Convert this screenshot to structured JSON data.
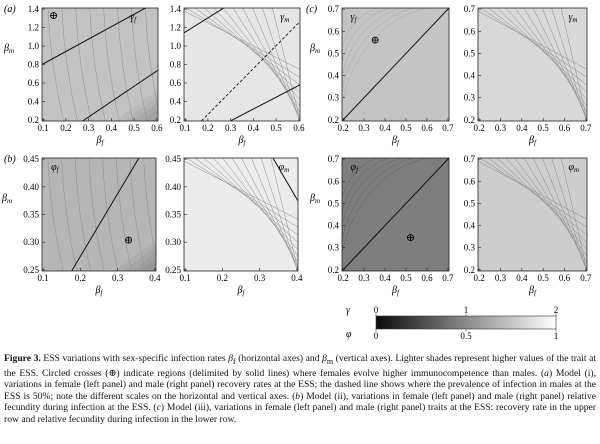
{
  "panels": [
    {
      "name": "panel-a-female-recovery",
      "group_label": "(a)",
      "trait": "γ",
      "sub": "f",
      "marker": "⊕",
      "x_label": "β",
      "x_sub": "f",
      "y_label": "β",
      "y_sub": "m",
      "x_ticks": [
        "0.1",
        "0.2",
        "0.3",
        "0.4",
        "0.5",
        "0.6"
      ],
      "y_ticks": [
        "1.4",
        "1.2",
        "1.0",
        "0.8",
        "0.6",
        "0.4",
        "0.2"
      ]
    },
    {
      "name": "panel-a-male-recovery",
      "group_label": "",
      "trait": "γ",
      "sub": "m",
      "marker": "",
      "x_label": "β",
      "x_sub": "f",
      "y_label": "",
      "y_sub": "",
      "x_ticks": [
        "0.1",
        "0.2",
        "0.3",
        "0.4",
        "0.5",
        "0.6"
      ],
      "y_ticks": [
        "1.4",
        "1.2",
        "1.0",
        "0.8",
        "0.6",
        "0.4",
        "0.2"
      ]
    },
    {
      "name": "panel-c-female-recovery",
      "group_label": "(c)",
      "trait": "γ",
      "sub": "f",
      "marker": "⊕",
      "x_label": "β",
      "x_sub": "f",
      "y_label": "β",
      "y_sub": "m",
      "x_ticks": [
        "0.2",
        "0.3",
        "0.4",
        "0.5",
        "0.6",
        "0.7"
      ],
      "y_ticks": [
        "0.7",
        "0.6",
        "0.5",
        "0.4",
        "0.3",
        "0.2"
      ]
    },
    {
      "name": "panel-c-male-recovery",
      "group_label": "",
      "trait": "γ",
      "sub": "m",
      "marker": "",
      "x_label": "β",
      "x_sub": "f",
      "y_label": "",
      "y_sub": "",
      "x_ticks": [
        "0.2",
        "0.3",
        "0.4",
        "0.5",
        "0.6",
        "0.7"
      ],
      "y_ticks": [
        "0.7",
        "0.6",
        "0.5",
        "0.4",
        "0.3",
        "0.2"
      ]
    },
    {
      "name": "panel-b-female-fecundity",
      "group_label": "(b)",
      "trait": "φ",
      "sub": "f",
      "marker": "⊕",
      "x_label": "β",
      "x_sub": "f",
      "y_label": "β",
      "y_sub": "m",
      "x_ticks": [
        "0.1",
        "0.2",
        "0.3",
        "0.4"
      ],
      "y_ticks": [
        "0.45",
        "0.40",
        "0.35",
        "0.30",
        "0.25"
      ]
    },
    {
      "name": "panel-b-male-fecundity",
      "group_label": "",
      "trait": "φ",
      "sub": "m",
      "marker": "",
      "x_label": "β",
      "x_sub": "f",
      "y_label": "",
      "y_sub": "",
      "x_ticks": [
        "0.1",
        "0.2",
        "0.3",
        "0.4"
      ],
      "y_ticks": [
        "0.45",
        "0.40",
        "0.35",
        "0.30",
        "0.25"
      ]
    },
    {
      "name": "panel-c-female-fecundity",
      "group_label": "",
      "trait": "φ",
      "sub": "f",
      "marker": "⊕",
      "x_label": "β",
      "x_sub": "f",
      "y_label": "β",
      "y_sub": "m",
      "x_ticks": [
        "0.2",
        "0.3",
        "0.4",
        "0.5",
        "0.6",
        "0.7"
      ],
      "y_ticks": [
        "0.7",
        "0.6",
        "0.5",
        "0.4",
        "0.3",
        "0.2"
      ]
    },
    {
      "name": "panel-c-male-fecundity",
      "group_label": "",
      "trait": "φ",
      "sub": "m",
      "marker": "",
      "x_label": "β",
      "x_sub": "f",
      "y_label": "",
      "y_sub": "",
      "x_ticks": [
        "0.2",
        "0.3",
        "0.4",
        "0.5",
        "0.6",
        "0.7"
      ],
      "y_ticks": [
        "0.7",
        "0.6",
        "0.5",
        "0.4",
        "0.3",
        "0.2"
      ]
    }
  ],
  "colorbar": {
    "top_symbol": "γ",
    "bottom_symbol": "φ",
    "top_ticks": [
      "0",
      "1",
      "2"
    ],
    "bottom_ticks": [
      "0",
      "0.5",
      "1"
    ],
    "dark_color": "#0a0a0a",
    "light_color": "#ffffff"
  },
  "caption": {
    "label": "Figure 3.",
    "p1": "ESS variations with sex-specific infection rates ",
    "p2": " (horizontal axes) and ",
    "p3": " (vertical axes). Lighter shades represent higher values of the trait at the ESS. Circled crosses (⊕) indicate regions (delimited by solid lines) where females evolve higher immunocompetence than males. (",
    "a_label": "a",
    "p4": ") Model (i), variations in female (left panel) and male (right panel) recovery rates at the ESS; the dashed line shows where the prevalence of infection in males at the ESS is 50%; note the different scales on the horizontal and vertical axes. (",
    "b_label": "b",
    "p5": ") Model (ii), variations in female (left panel) and male (right panel) relative fecundity during infection at the ESS. (",
    "c_label": "c",
    "p6": ") Model (iii), variations in female (left panel) and male (right panel) traits at the ESS: recovery rate in the upper row and relative fecundity during infection in the lower row.",
    "beta": "β",
    "sub_f": "f",
    "sub_m": "m"
  }
}
